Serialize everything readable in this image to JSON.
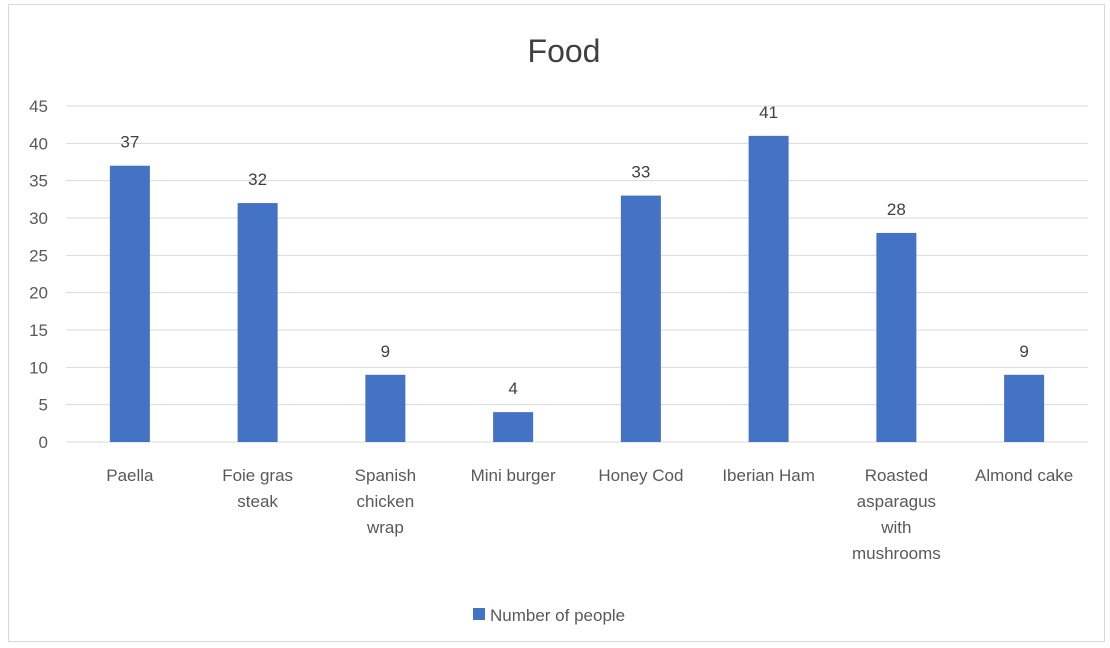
{
  "chart_data": {
    "type": "bar",
    "title": "Food",
    "categories": [
      [
        "Paella"
      ],
      [
        "Foie gras",
        "steak"
      ],
      [
        "Spanish",
        "chicken",
        "wrap"
      ],
      [
        "Mini burger"
      ],
      [
        "Honey Cod"
      ],
      [
        "Iberian Ham"
      ],
      [
        "Roasted",
        "asparagus",
        "with",
        "mushrooms"
      ],
      [
        "Almond cake"
      ]
    ],
    "series": [
      {
        "name": "Number of people",
        "values": [
          37,
          32,
          9,
          4,
          33,
          41,
          28,
          9
        ],
        "color": "#4472C4"
      }
    ],
    "y_ticks": [
      0,
      5,
      10,
      15,
      20,
      25,
      30,
      35,
      40,
      45
    ],
    "ylim": [
      0,
      45
    ],
    "grid": true,
    "data_labels": true,
    "legend_position": "bottom"
  }
}
